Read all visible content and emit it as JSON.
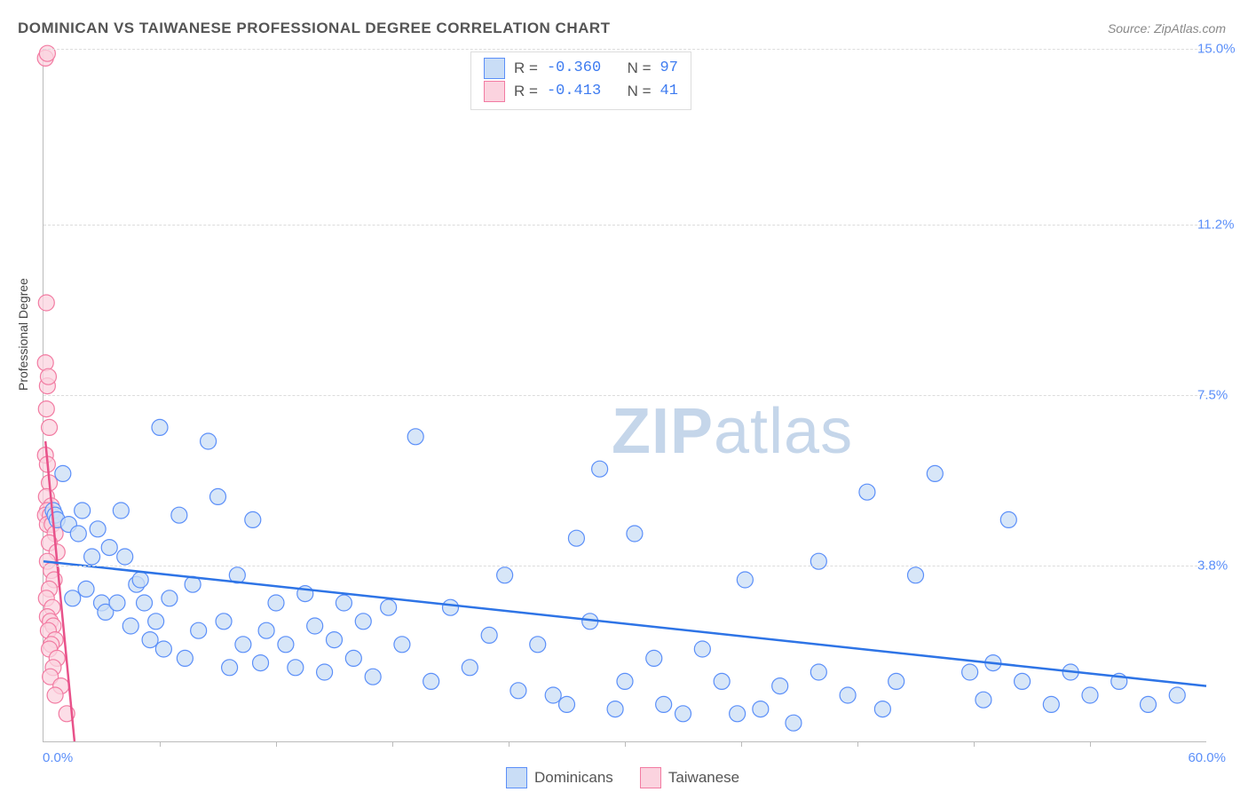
{
  "title": "DOMINICAN VS TAIWANESE PROFESSIONAL DEGREE CORRELATION CHART",
  "source": "Source: ZipAtlas.com",
  "y_axis_label": "Professional Degree",
  "watermark": {
    "bold": "ZIP",
    "rest": "atlas"
  },
  "chart": {
    "type": "scatter",
    "background_color": "#ffffff",
    "grid_color": "#dcdcdc",
    "axis_color": "#bbbbbb",
    "xlim": [
      0,
      60
    ],
    "ylim": [
      0,
      15
    ],
    "x_min_label": "0.0%",
    "x_max_label": "60.0%",
    "y_ticks": [
      3.8,
      7.5,
      11.2,
      15.0
    ],
    "y_tick_labels": [
      "3.8%",
      "7.5%",
      "11.2%",
      "15.0%"
    ],
    "x_tick_positions": [
      6,
      12,
      18,
      24,
      30,
      36,
      42,
      48,
      54
    ],
    "marker_radius": 9,
    "marker_stroke_width": 1.2,
    "trend_line_width": 2.5,
    "series": {
      "dominicans": {
        "label": "Dominicans",
        "fill": "#c9ddf6",
        "stroke": "#5b8ff9",
        "stats_R_label": "R =",
        "stats_R_value": "-0.360",
        "stats_N_label": "N =",
        "stats_N_value": "97",
        "stats_value_color": "#3d7bf0",
        "trend_color": "#2e74e6",
        "trend": {
          "x1": 0,
          "y1": 3.9,
          "x2": 60,
          "y2": 1.2
        },
        "points": [
          [
            0.5,
            5.0
          ],
          [
            0.6,
            4.9
          ],
          [
            0.7,
            4.8
          ],
          [
            1.0,
            5.8
          ],
          [
            1.3,
            4.7
          ],
          [
            1.5,
            3.1
          ],
          [
            1.8,
            4.5
          ],
          [
            2.0,
            5.0
          ],
          [
            2.2,
            3.3
          ],
          [
            2.5,
            4.0
          ],
          [
            2.8,
            4.6
          ],
          [
            3.0,
            3.0
          ],
          [
            3.2,
            2.8
          ],
          [
            3.4,
            4.2
          ],
          [
            3.8,
            3.0
          ],
          [
            4.0,
            5.0
          ],
          [
            4.2,
            4.0
          ],
          [
            4.5,
            2.5
          ],
          [
            4.8,
            3.4
          ],
          [
            5.0,
            3.5
          ],
          [
            5.2,
            3.0
          ],
          [
            5.5,
            2.2
          ],
          [
            5.8,
            2.6
          ],
          [
            6.0,
            6.8
          ],
          [
            6.2,
            2.0
          ],
          [
            6.5,
            3.1
          ],
          [
            7.0,
            4.9
          ],
          [
            7.3,
            1.8
          ],
          [
            7.7,
            3.4
          ],
          [
            8.0,
            2.4
          ],
          [
            8.5,
            6.5
          ],
          [
            9.0,
            5.3
          ],
          [
            9.3,
            2.6
          ],
          [
            9.6,
            1.6
          ],
          [
            10.0,
            3.6
          ],
          [
            10.3,
            2.1
          ],
          [
            10.8,
            4.8
          ],
          [
            11.2,
            1.7
          ],
          [
            11.5,
            2.4
          ],
          [
            12.0,
            3.0
          ],
          [
            12.5,
            2.1
          ],
          [
            13.0,
            1.6
          ],
          [
            13.5,
            3.2
          ],
          [
            14.0,
            2.5
          ],
          [
            14.5,
            1.5
          ],
          [
            15.0,
            2.2
          ],
          [
            15.5,
            3.0
          ],
          [
            16.0,
            1.8
          ],
          [
            16.5,
            2.6
          ],
          [
            17.0,
            1.4
          ],
          [
            17.8,
            2.9
          ],
          [
            18.5,
            2.1
          ],
          [
            19.2,
            6.6
          ],
          [
            20.0,
            1.3
          ],
          [
            21.0,
            2.9
          ],
          [
            22.0,
            1.6
          ],
          [
            23.0,
            2.3
          ],
          [
            23.8,
            3.6
          ],
          [
            24.5,
            1.1
          ],
          [
            25.5,
            2.1
          ],
          [
            26.3,
            1.0
          ],
          [
            27.0,
            0.8
          ],
          [
            27.5,
            4.4
          ],
          [
            28.2,
            2.6
          ],
          [
            28.7,
            5.9
          ],
          [
            29.5,
            0.7
          ],
          [
            30.0,
            1.3
          ],
          [
            30.5,
            4.5
          ],
          [
            31.5,
            1.8
          ],
          [
            32.0,
            0.8
          ],
          [
            33.0,
            0.6
          ],
          [
            34.0,
            2.0
          ],
          [
            35.0,
            1.3
          ],
          [
            35.8,
            0.6
          ],
          [
            36.2,
            3.5
          ],
          [
            37.0,
            0.7
          ],
          [
            38.0,
            1.2
          ],
          [
            38.7,
            0.4
          ],
          [
            40.0,
            1.5
          ],
          [
            40.0,
            3.9
          ],
          [
            41.5,
            1.0
          ],
          [
            42.5,
            5.4
          ],
          [
            43.3,
            0.7
          ],
          [
            44.0,
            1.3
          ],
          [
            45.0,
            3.6
          ],
          [
            46.0,
            5.8
          ],
          [
            47.8,
            1.5
          ],
          [
            48.5,
            0.9
          ],
          [
            49.0,
            1.7
          ],
          [
            49.8,
            4.8
          ],
          [
            50.5,
            1.3
          ],
          [
            52.0,
            0.8
          ],
          [
            53.0,
            1.5
          ],
          [
            54.0,
            1.0
          ],
          [
            55.5,
            1.3
          ],
          [
            57.0,
            0.8
          ],
          [
            58.5,
            1.0
          ]
        ]
      },
      "taiwanese": {
        "label": "Taiwanese",
        "fill": "#fbd3df",
        "stroke": "#f27ba2",
        "stats_R_label": "R =",
        "stats_R_value": "-0.413",
        "stats_N_label": "N =",
        "stats_N_value": "41",
        "stats_value_color": "#3d7bf0",
        "trend_color": "#e8528a",
        "trend": {
          "x1": 0.1,
          "y1": 6.5,
          "x2": 1.6,
          "y2": 0
        },
        "points": [
          [
            0.1,
            14.8
          ],
          [
            0.2,
            14.9
          ],
          [
            0.15,
            9.5
          ],
          [
            0.1,
            8.2
          ],
          [
            0.2,
            7.7
          ],
          [
            0.25,
            7.9
          ],
          [
            0.15,
            7.2
          ],
          [
            0.3,
            6.8
          ],
          [
            0.1,
            6.2
          ],
          [
            0.2,
            6.0
          ],
          [
            0.3,
            5.6
          ],
          [
            0.15,
            5.3
          ],
          [
            0.4,
            5.1
          ],
          [
            0.2,
            5.0
          ],
          [
            0.1,
            4.9
          ],
          [
            0.35,
            4.9
          ],
          [
            0.5,
            4.8
          ],
          [
            0.2,
            4.7
          ],
          [
            0.45,
            4.7
          ],
          [
            0.6,
            4.5
          ],
          [
            0.3,
            4.3
          ],
          [
            0.7,
            4.1
          ],
          [
            0.2,
            3.9
          ],
          [
            0.4,
            3.7
          ],
          [
            0.55,
            3.5
          ],
          [
            0.3,
            3.3
          ],
          [
            0.15,
            3.1
          ],
          [
            0.45,
            2.9
          ],
          [
            0.2,
            2.7
          ],
          [
            0.35,
            2.6
          ],
          [
            0.5,
            2.5
          ],
          [
            0.25,
            2.4
          ],
          [
            0.6,
            2.2
          ],
          [
            0.4,
            2.1
          ],
          [
            0.3,
            2.0
          ],
          [
            0.7,
            1.8
          ],
          [
            0.5,
            1.6
          ],
          [
            0.35,
            1.4
          ],
          [
            0.9,
            1.2
          ],
          [
            0.6,
            1.0
          ],
          [
            1.2,
            0.6
          ]
        ]
      }
    }
  }
}
